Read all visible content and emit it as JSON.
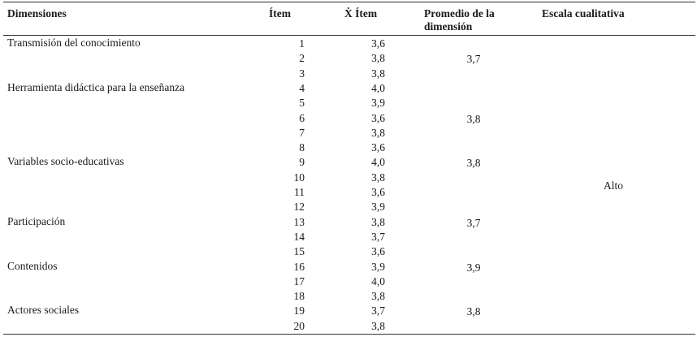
{
  "table": {
    "headers": {
      "dimension": "Dimensiones",
      "item": "Ítem",
      "mean_item": "Ẋ Ítem",
      "promedio_line1": "Promedio de la",
      "promedio_line2": "dimensión",
      "escala": "Escala cualitativa"
    },
    "rows": [
      {
        "item": "1",
        "mean": "3,6"
      },
      {
        "item": "2",
        "mean": "3,8"
      },
      {
        "item": "3",
        "mean": "3,8"
      },
      {
        "item": "4",
        "mean": "4,0"
      },
      {
        "item": "5",
        "mean": "3,9"
      },
      {
        "item": "6",
        "mean": "3,6"
      },
      {
        "item": "7",
        "mean": "3,8"
      },
      {
        "item": "8",
        "mean": "3,6"
      },
      {
        "item": "9",
        "mean": "4,0"
      },
      {
        "item": "10",
        "mean": "3,8"
      },
      {
        "item": "11",
        "mean": "3,6"
      },
      {
        "item": "12",
        "mean": "3,9"
      },
      {
        "item": "13",
        "mean": "3,8"
      },
      {
        "item": "14",
        "mean": "3,7"
      },
      {
        "item": "15",
        "mean": "3,6"
      },
      {
        "item": "16",
        "mean": "3,9"
      },
      {
        "item": "17",
        "mean": "4,0"
      },
      {
        "item": "18",
        "mean": "3,8"
      },
      {
        "item": "19",
        "mean": "3,7"
      },
      {
        "item": "20",
        "mean": "3,8"
      }
    ],
    "dimensions": [
      {
        "name": "Transmisión del conocimiento",
        "promedio": "3,7"
      },
      {
        "name": "Herramienta didáctica para la enseñanza",
        "promedio": "3,8"
      },
      {
        "name": "Variables socio-educativas",
        "promedio": "3,8"
      },
      {
        "name": "Participación",
        "promedio": "3,7"
      },
      {
        "name": "Contenidos",
        "promedio": "3,9"
      },
      {
        "name": "Actores sociales",
        "promedio": "3,8"
      }
    ],
    "escala_value": "Alto"
  }
}
